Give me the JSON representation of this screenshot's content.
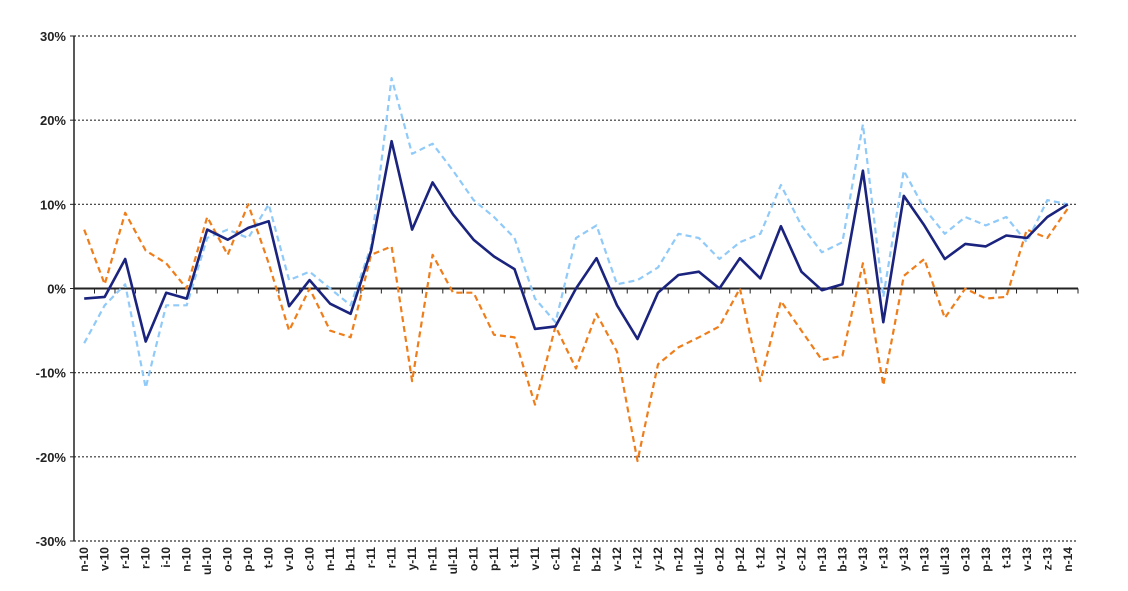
{
  "chart_data": {
    "type": "line",
    "grid": true,
    "legend": "none",
    "ylim": [
      -30,
      30
    ],
    "yticks": [
      30,
      20,
      10,
      0,
      -10,
      -20,
      -30
    ],
    "ytick_labels": [
      "30%",
      "20%",
      "10%",
      "0%",
      "-10%",
      "-20%",
      "-30%"
    ],
    "xtick_labels": [
      "n-10",
      "v-10",
      "r-10",
      "r-10",
      "i-10",
      "n-10",
      "ul-10",
      "o-10",
      "p-10",
      "t-10",
      "v-10",
      "c-10",
      "n-11",
      "b-11",
      "r-11",
      "r-11",
      "y-11",
      "n-11",
      "ul-11",
      "o-11",
      "p-11",
      "t-11",
      "v-11",
      "c-11",
      "n-12",
      "b-12",
      "v-12",
      "r-12",
      "y-12",
      "n-12",
      "ul-12",
      "o-12",
      "p-12",
      "t-12",
      "v-12",
      "c-12",
      "n-13",
      "b-13",
      "v-13",
      "r-13",
      "y-13",
      "n-13",
      "ul-13",
      "o-13",
      "p-13",
      "t-13",
      "v-13",
      "z-13",
      "n-14"
    ],
    "series": [
      {
        "color": "#1a237e",
        "dash": "solid",
        "values": [
          -1.2,
          -1,
          3.5,
          -6.3,
          -0.5,
          -1.2,
          7,
          5.8,
          7.2,
          8,
          -2.1,
          1,
          -1.8,
          -3,
          4.5,
          17.5,
          7,
          12.6,
          8.8,
          5.8,
          3.8,
          2.3,
          -4.8,
          -4.5,
          0,
          3.6,
          -2,
          -6,
          -0.5,
          1.6,
          2,
          0,
          3.6,
          1.2,
          7.4,
          2,
          -0.2,
          0.5,
          14,
          -4,
          11,
          7.5,
          3.5,
          5.3,
          5,
          6.3,
          6,
          8.5,
          10
        ]
      },
      {
        "color": "#90caf9",
        "dash": "dashed",
        "values": [
          -6.5,
          -2,
          0.5,
          -11.8,
          -2,
          -2,
          6,
          7,
          6,
          10,
          1,
          2,
          0,
          -2,
          5,
          25,
          16,
          17.2,
          14,
          10.5,
          8.5,
          6,
          -1.2,
          -4,
          6,
          7.5,
          0.5,
          1,
          2.5,
          6.5,
          6,
          3.5,
          5.5,
          6.5,
          12.3,
          7.5,
          4.3,
          5.5,
          19.5,
          -1,
          14,
          9.5,
          6.5,
          8.5,
          7.5,
          8.5,
          5.5,
          10.5,
          10
        ]
      },
      {
        "color": "#ef7d1a",
        "dash": "dashed",
        "values": [
          7,
          0.5,
          9,
          4.5,
          3,
          0,
          8.5,
          4,
          10,
          3,
          -5,
          0,
          -5,
          -5.8,
          4,
          5,
          -11,
          4,
          -0.5,
          -0.5,
          -5.5,
          -5.8,
          -13.8,
          -4.5,
          -9.5,
          -3,
          -7.5,
          -20.5,
          -9,
          -7,
          -5.8,
          -4.5,
          0,
          -11,
          -1.5,
          -5,
          -8.5,
          -8,
          3,
          -11.5,
          1.5,
          3.5,
          -3.5,
          0,
          -1.2,
          -1,
          7,
          6,
          9.5
        ]
      }
    ]
  }
}
